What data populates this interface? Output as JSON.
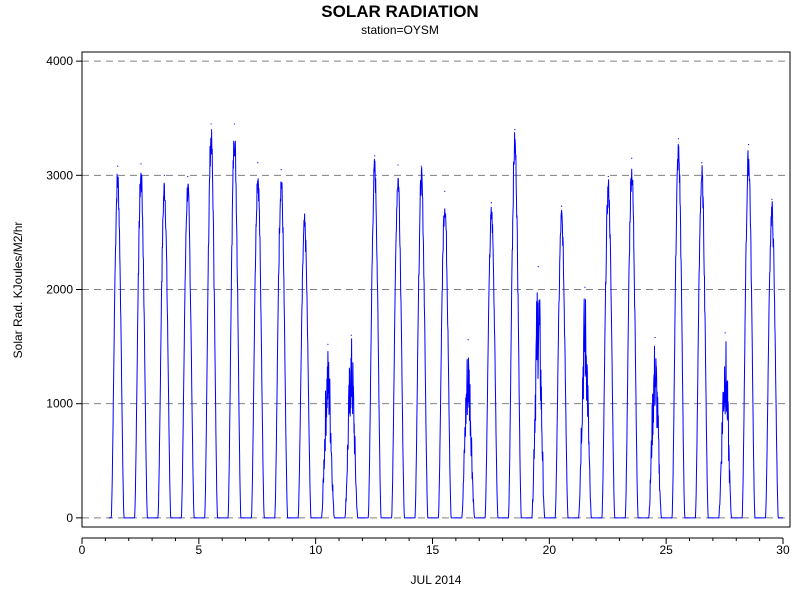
{
  "chart_data": {
    "type": "line",
    "title": "SOLAR RADIATION",
    "subtitle": "station=OYSM",
    "xlabel": "JUL 2014",
    "ylabel": "Solar Rad. KJoules/M2/hr",
    "xlim": [
      0,
      30.3
    ],
    "ylim": [
      -80,
      4080
    ],
    "x_ticks": [
      0,
      5,
      10,
      15,
      20,
      25,
      30
    ],
    "y_ticks": [
      0,
      1000,
      2000,
      3000,
      4000
    ],
    "grid": "horizontal dashed at y ticks",
    "line_color": "#0000ff",
    "series": [
      {
        "daily_peaks": [
          {
            "day": 1,
            "peak": 3080
          },
          {
            "day": 2,
            "peak": 3100
          },
          {
            "day": 3,
            "peak": 3000
          },
          {
            "day": 4,
            "peak": 2990
          },
          {
            "day": 5,
            "peak": 3450
          },
          {
            "day": 6,
            "peak": 3450
          },
          {
            "day": 7,
            "peak": 3110
          },
          {
            "day": 8,
            "peak": 3050
          },
          {
            "day": 9,
            "peak": 2660
          },
          {
            "day": 10,
            "peak": 1520
          },
          {
            "day": 11,
            "peak": 1600
          },
          {
            "day": 12,
            "peak": 3170
          },
          {
            "day": 13,
            "peak": 3090
          },
          {
            "day": 14,
            "peak": 3080
          },
          {
            "day": 15,
            "peak": 2860
          },
          {
            "day": 16,
            "peak": 1560
          },
          {
            "day": 17,
            "peak": 2760
          },
          {
            "day": 18,
            "peak": 3400
          },
          {
            "day": 19,
            "peak": 2200
          },
          {
            "day": 20,
            "peak": 2730
          },
          {
            "day": 21,
            "peak": 2020
          },
          {
            "day": 22,
            "peak": 2990
          },
          {
            "day": 23,
            "peak": 3150
          },
          {
            "day": 24,
            "peak": 1580
          },
          {
            "day": 25,
            "peak": 3320
          },
          {
            "day": 26,
            "peak": 3110
          },
          {
            "day": 27,
            "peak": 1620
          },
          {
            "day": 28,
            "peak": 3270
          },
          {
            "day": 29,
            "peak": 2790
          }
        ]
      }
    ]
  }
}
